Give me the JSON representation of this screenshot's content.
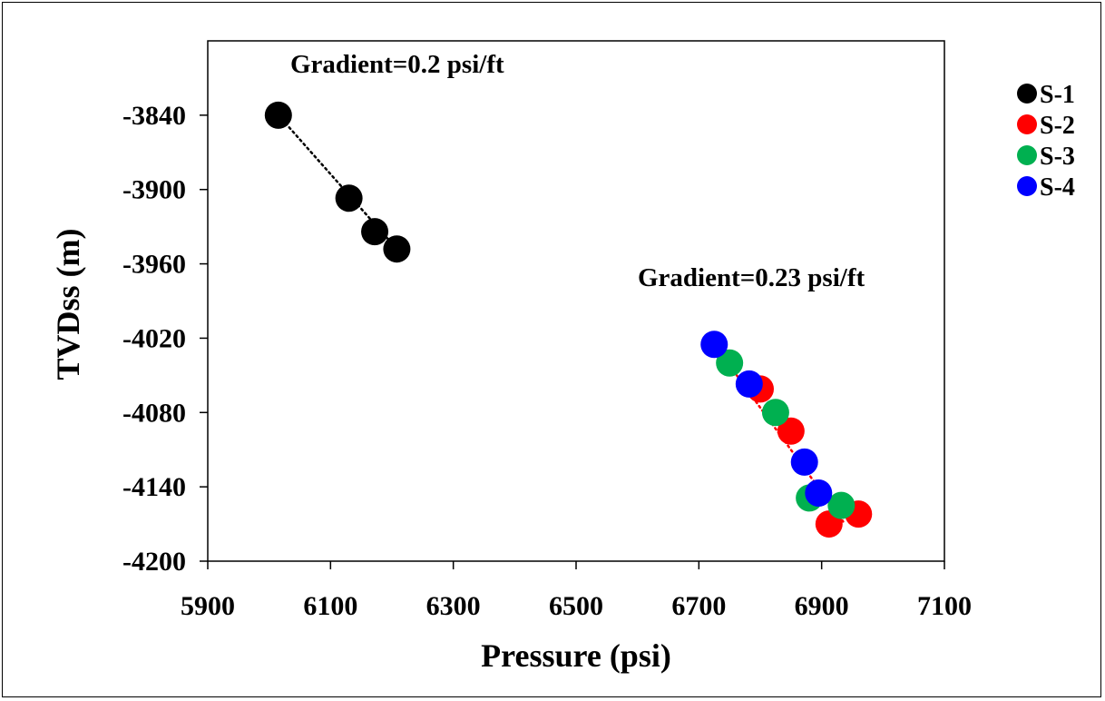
{
  "chart_data": {
    "type": "scatter",
    "title": "",
    "xlabel": "Pressure (psi)",
    "ylabel": "TVDss (m)",
    "xlim": [
      5900,
      7100
    ],
    "ylim": [
      -4200,
      -3780
    ],
    "x_ticks": [
      5900,
      6100,
      6300,
      6500,
      6700,
      6900,
      7100
    ],
    "y_ticks": [
      -3840,
      -3900,
      -3960,
      -4020,
      -4080,
      -4140,
      -4200
    ],
    "grid": false,
    "legend_position": "top-right",
    "series": [
      {
        "name": "S-1",
        "color": "#000000",
        "points": [
          {
            "x": 6015,
            "y": -3840
          },
          {
            "x": 6130,
            "y": -3907
          },
          {
            "x": 6172,
            "y": -3934
          },
          {
            "x": 6208,
            "y": -3948
          }
        ]
      },
      {
        "name": "S-2",
        "color": "#ff0000",
        "points": [
          {
            "x": 6800,
            "y": -4061
          },
          {
            "x": 6850,
            "y": -4095
          },
          {
            "x": 6960,
            "y": -4162
          },
          {
            "x": 6912,
            "y": -4170
          }
        ]
      },
      {
        "name": "S-3",
        "color": "#00b050",
        "points": [
          {
            "x": 6750,
            "y": -4040
          },
          {
            "x": 6825,
            "y": -4080
          },
          {
            "x": 6880,
            "y": -4149
          },
          {
            "x": 6932,
            "y": -4155
          }
        ]
      },
      {
        "name": "S-4",
        "color": "#0000ff",
        "points": [
          {
            "x": 6725,
            "y": -4025
          },
          {
            "x": 6782,
            "y": -4057
          },
          {
            "x": 6872,
            "y": -4120
          },
          {
            "x": 6895,
            "y": -4145
          }
        ]
      }
    ],
    "trendlines": [
      {
        "color": "#000000",
        "from": {
          "x": 6015,
          "y": -3840
        },
        "to": {
          "x": 6208,
          "y": -3948
        }
      },
      {
        "color": "#ff0000",
        "from": {
          "x": 6725,
          "y": -4025
        },
        "to": {
          "x": 6935,
          "y": -4168
        }
      }
    ],
    "annotations": [
      {
        "text": "Gradient=0.2 psi/ft",
        "color": "#000000"
      },
      {
        "text": "Gradient=0.23 psi/ft",
        "color": "#ff0000"
      }
    ]
  }
}
